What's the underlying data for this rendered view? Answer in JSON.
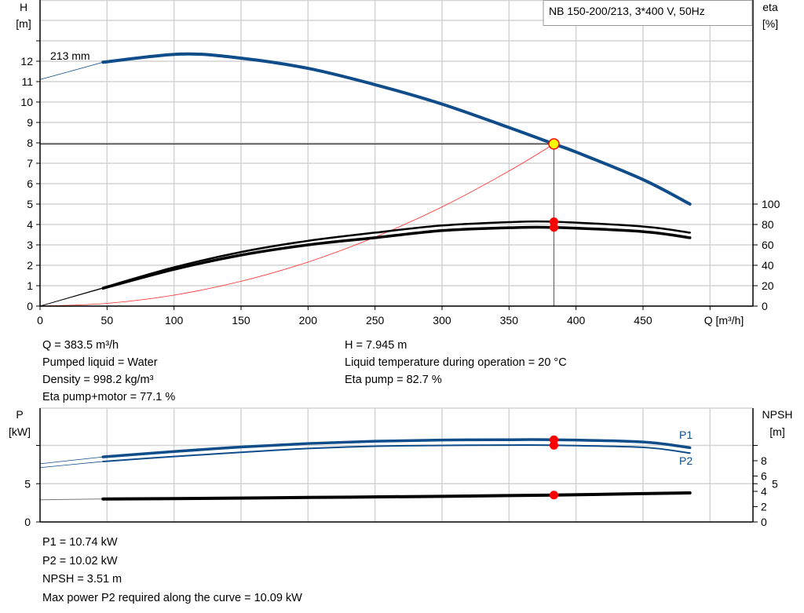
{
  "legend_box": "NB 150-200/213, 3*400 V, 50Hz",
  "colors": {
    "head": "#0f4d8a",
    "power": "#0f4d8a",
    "eta": "#000000",
    "npsh": "#000000",
    "system": "#ff2a2a",
    "marker": "#ff0000",
    "duty_point": "#ffff00",
    "grid": "#d3d3d3"
  },
  "chart_data": [
    {
      "type": "line",
      "xlabel": "Q [m³/h]",
      "ylabel_left": [
        "H",
        "[m]"
      ],
      "ylabel_right": [
        "eta",
        "[%]"
      ],
      "xlim": [
        0,
        530
      ],
      "xticks": [
        0,
        50,
        100,
        150,
        200,
        250,
        300,
        350,
        400,
        450
      ],
      "ylim_left": [
        0,
        15
      ],
      "yticks_left": [
        0,
        1,
        2,
        3,
        4,
        5,
        6,
        7,
        8,
        9,
        10,
        11,
        12
      ],
      "ylim_right": [
        0,
        300
      ],
      "yticks_right": [
        0,
        20,
        40,
        60,
        80,
        100
      ],
      "grid": true,
      "curve_label": "213 mm",
      "series": [
        {
          "key": "head",
          "axis": "left",
          "x": [
            0,
            47,
            105,
            150,
            200,
            250,
            300,
            350,
            383.5,
            400,
            450,
            485
          ],
          "y": [
            11.1,
            11.95,
            12.35,
            12.15,
            11.65,
            10.85,
            9.9,
            8.75,
            7.945,
            7.55,
            6.2,
            5.0
          ]
        },
        {
          "key": "eta_pump",
          "axis": "right",
          "x": [
            0,
            47,
            100,
            150,
            200,
            250,
            300,
            350,
            383.5,
            450,
            485
          ],
          "y": [
            0,
            18,
            38,
            53,
            64,
            72,
            79,
            82.3,
            82.7,
            78,
            72
          ]
        },
        {
          "key": "eta_pump_motor",
          "axis": "right",
          "x": [
            0,
            47,
            100,
            150,
            200,
            250,
            300,
            350,
            383.5,
            450,
            485
          ],
          "y": [
            0,
            17.5,
            36,
            50,
            60,
            67,
            74,
            76.8,
            77.1,
            73,
            67
          ]
        },
        {
          "key": "system",
          "axis": "left",
          "x": [
            0,
            50,
            100,
            150,
            200,
            250,
            300,
            350,
            383.5
          ],
          "y": [
            0,
            0.135,
            0.54,
            1.215,
            2.16,
            3.38,
            4.86,
            6.62,
            7.945
          ]
        }
      ],
      "duty_point": {
        "Q": 383.5,
        "H": 7.945,
        "eta_pump": 82.7,
        "eta_pump_motor": 77.1
      }
    },
    {
      "type": "line",
      "ylabel_left": [
        "P",
        "[kW]"
      ],
      "ylabel_right": [
        "NPSH",
        "[m]"
      ],
      "xlim": [
        0,
        530
      ],
      "ylim_left": [
        0,
        15
      ],
      "yticks_left": [
        0,
        5
      ],
      "yticks_right": [
        0,
        2,
        4,
        5,
        6,
        8
      ],
      "grid": true,
      "series": [
        {
          "name": "P1",
          "axis": "left",
          "x": [
            0,
            47,
            100,
            150,
            200,
            250,
            300,
            350,
            383.5,
            450,
            485
          ],
          "y": [
            7.6,
            8.5,
            9.2,
            9.8,
            10.25,
            10.55,
            10.7,
            10.75,
            10.74,
            10.45,
            9.7
          ]
        },
        {
          "name": "P2",
          "axis": "left",
          "x": [
            0,
            47,
            100,
            150,
            200,
            250,
            300,
            350,
            383.5,
            450,
            485
          ],
          "y": [
            7.1,
            7.9,
            8.55,
            9.1,
            9.6,
            9.9,
            10.0,
            10.04,
            10.02,
            9.75,
            9.0
          ]
        },
        {
          "key": "npsh",
          "axis": "right",
          "x": [
            0,
            47,
            100,
            200,
            300,
            383.5,
            450,
            485
          ],
          "y": [
            2.9,
            3.0,
            3.05,
            3.2,
            3.35,
            3.51,
            3.7,
            3.8
          ]
        }
      ],
      "duty_point": {
        "Q": 383.5,
        "P1": 10.74,
        "P2": 10.02,
        "NPSH": 3.51
      }
    }
  ],
  "info_top": {
    "left": [
      "Q = 383.5 m³/h",
      "Pumped liquid = Water",
      "Density = 998.2 kg/m³",
      "Eta pump+motor = 77.1 %"
    ],
    "right": [
      "H = 7.945 m",
      "Liquid temperature during operation = 20 °C",
      "Eta pump = 82.7 %"
    ]
  },
  "info_bottom": [
    "P1 = 10.74 kW",
    "P2 = 10.02 kW",
    "NPSH = 3.51 m",
    "Max power P2 required along the curve = 10.09 kW"
  ]
}
